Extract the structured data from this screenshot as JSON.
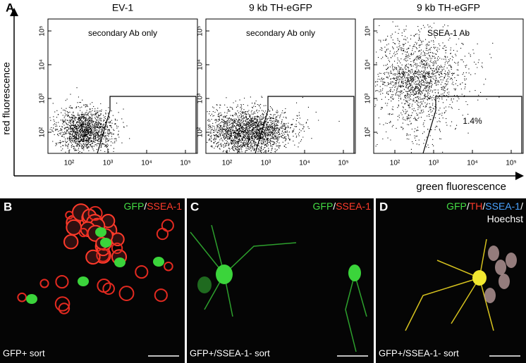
{
  "panel_a": {
    "label": "A",
    "plots": [
      {
        "title": "EV-1",
        "annotation": "secondary Ab only"
      },
      {
        "title": "9 kb TH-eGFP",
        "annotation": "secondary Ab only"
      },
      {
        "title": "9 kb TH-eGFP",
        "annotation": "SSEA-1 Ab",
        "gate_label": "1.4%"
      }
    ],
    "y_axis_label": "red fluorescence",
    "x_axis_label": "green fluorescence",
    "yticks": [
      "10²",
      "10³",
      "10⁴",
      "10⁵"
    ],
    "xticks": [
      "10²",
      "10³",
      "10⁴",
      "10⁵"
    ]
  },
  "panels": [
    {
      "label": "B",
      "stain_lines": [
        [
          {
            "text": "GFP",
            "color": "#44dd44"
          },
          {
            "text": "/",
            "color": "#ffffff"
          },
          {
            "text": "SSEA-1",
            "color": "#ff3b2b"
          }
        ]
      ],
      "caption": "GFP+ sort"
    },
    {
      "label": "C",
      "stain_lines": [
        [
          {
            "text": "GFP",
            "color": "#44dd44"
          },
          {
            "text": "/",
            "color": "#ffffff"
          },
          {
            "text": "SSEA-1",
            "color": "#ff3b2b"
          }
        ]
      ],
      "caption": "GFP+/SSEA-1- sort"
    },
    {
      "label": "D",
      "stain_lines": [
        [
          {
            "text": "GFP",
            "color": "#44dd44"
          },
          {
            "text": "/",
            "color": "#ffffff"
          },
          {
            "text": "TH",
            "color": "#ff3b2b"
          },
          {
            "text": "/",
            "color": "#ffffff"
          },
          {
            "text": "SSEA-1",
            "color": "#4aa3ff"
          },
          {
            "text": "/",
            "color": "#ffffff"
          }
        ],
        [
          {
            "text": "Hoechst",
            "color": "#ffffff"
          }
        ]
      ],
      "caption": "GFP+/SSEA-1- sort"
    }
  ]
}
